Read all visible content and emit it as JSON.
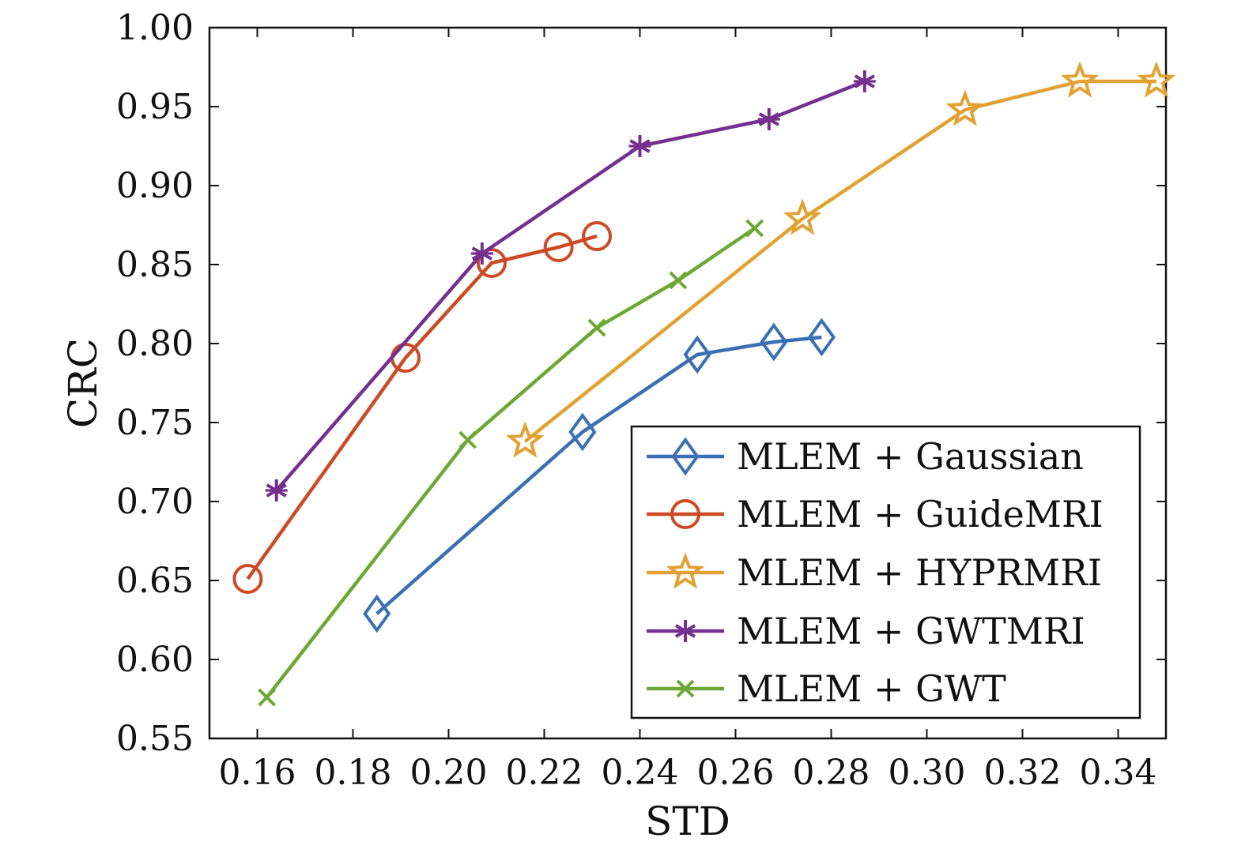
{
  "chart_data": {
    "type": "line",
    "title": "",
    "xlabel": "STD",
    "ylabel": "CRC",
    "xlim": [
      0.15,
      0.35
    ],
    "ylim": [
      0.55,
      1.0
    ],
    "xticks": [
      0.16,
      0.18,
      0.2,
      0.22,
      0.24,
      0.26,
      0.28,
      0.3,
      0.32,
      0.34
    ],
    "xtick_labels": [
      "0.16",
      "0.18",
      "0.20",
      "0.22",
      "0.24",
      "0.26",
      "0.28",
      "0.30",
      "0.32",
      "0.34"
    ],
    "yticks": [
      0.55,
      0.6,
      0.65,
      0.7,
      0.75,
      0.8,
      0.85,
      0.9,
      0.95,
      1.0
    ],
    "ytick_labels": [
      "0.55",
      "0.60",
      "0.65",
      "0.70",
      "0.75",
      "0.80",
      "0.85",
      "0.90",
      "0.95",
      "1.00"
    ],
    "grid": false,
    "legend_position": "bottom-right",
    "series": [
      {
        "name": "MLEM + Gaussian",
        "color": "#3a6fb4",
        "marker": "diamond",
        "x": [
          0.185,
          0.228,
          0.252,
          0.268,
          0.278
        ],
        "y": [
          0.629,
          0.744,
          0.793,
          0.801,
          0.804
        ]
      },
      {
        "name": "MLEM + GuideMRI",
        "color": "#cc4a24",
        "marker": "circle",
        "x": [
          0.158,
          0.191,
          0.209,
          0.223,
          0.231
        ],
        "y": [
          0.651,
          0.791,
          0.851,
          0.861,
          0.868
        ]
      },
      {
        "name": "MLEM + HYPRMRI",
        "color": "#e2a133",
        "marker": "star",
        "x": [
          0.216,
          0.274,
          0.308,
          0.332,
          0.348
        ],
        "y": [
          0.738,
          0.879,
          0.948,
          0.966,
          0.966
        ]
      },
      {
        "name": "MLEM + GWTMRI",
        "color": "#73308f",
        "marker": "asterisk",
        "x": [
          0.164,
          0.207,
          0.24,
          0.267,
          0.287
        ],
        "y": [
          0.707,
          0.857,
          0.925,
          0.942,
          0.966
        ]
      },
      {
        "name": "MLEM + GWT",
        "color": "#6da835",
        "marker": "x",
        "x": [
          0.162,
          0.204,
          0.231,
          0.248,
          0.264
        ],
        "y": [
          0.576,
          0.739,
          0.81,
          0.84,
          0.873
        ]
      }
    ]
  }
}
